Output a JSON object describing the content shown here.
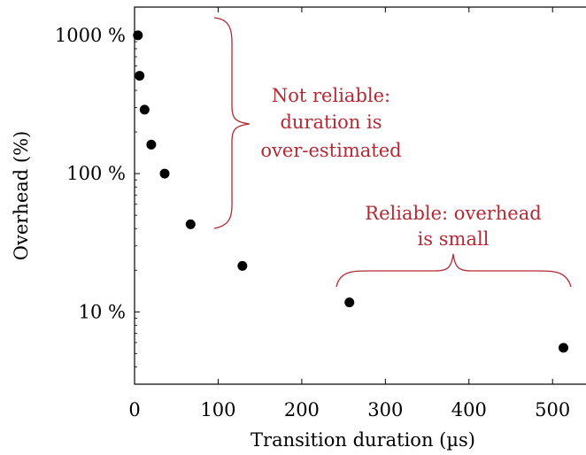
{
  "chart_data": {
    "type": "scatter",
    "xlabel": "Transition duration (µs)",
    "ylabel": "Overhead (%)",
    "x_scale": "linear",
    "y_scale": "log",
    "xlim": [
      0,
      540
    ],
    "ylim": [
      3,
      1600
    ],
    "x_ticks": [
      {
        "value": 0,
        "label": "0"
      },
      {
        "value": 100,
        "label": "100"
      },
      {
        "value": 200,
        "label": "200"
      },
      {
        "value": 300,
        "label": "300"
      },
      {
        "value": 400,
        "label": "400"
      },
      {
        "value": 500,
        "label": "500"
      }
    ],
    "y_ticks": [
      {
        "value": 10,
        "label": "10 %"
      },
      {
        "value": 100,
        "label": "100 %"
      },
      {
        "value": 1000,
        "label": "1000 %"
      }
    ],
    "grid": false,
    "marker_color": "#000000",
    "points": [
      {
        "x": 4,
        "y": 1000
      },
      {
        "x": 6,
        "y": 510
      },
      {
        "x": 12,
        "y": 290
      },
      {
        "x": 20,
        "y": 162
      },
      {
        "x": 36,
        "y": 100
      },
      {
        "x": 67,
        "y": 43
      },
      {
        "x": 129,
        "y": 21.5
      },
      {
        "x": 257,
        "y": 11.7
      },
      {
        "x": 513,
        "y": 5.5
      }
    ],
    "annotations": [
      {
        "name": "not-reliable",
        "color": "#b22a35",
        "lines": [
          "Not reliable:",
          "duration is",
          "over-estimated"
        ]
      },
      {
        "name": "reliable",
        "color": "#b22a35",
        "lines": [
          "Reliable: overhead",
          "is small"
        ]
      }
    ]
  }
}
